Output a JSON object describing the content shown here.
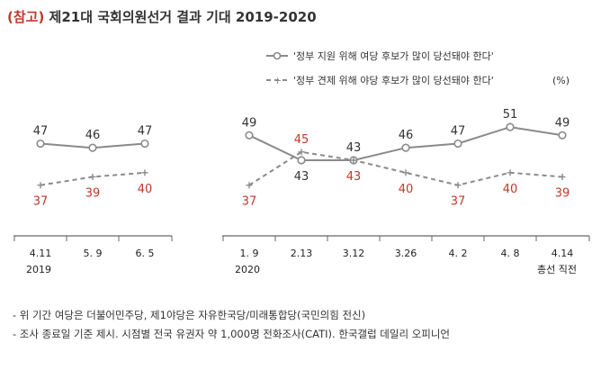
{
  "header": {
    "ref_label": "(참고)",
    "title": "제21대 국회의원선거 결과 기대 2019-2020"
  },
  "colors": {
    "support_line": "#8a8a8a",
    "check_line": "#8a8a8a",
    "support_label": "#333333",
    "check_label": "#c0392b",
    "axis": "#666666"
  },
  "chart_data": {
    "type": "line",
    "title": "제21대 국회의원선거 결과 기대 2019-2020",
    "unit": "(%)",
    "categories": [
      "4.11",
      "5. 9",
      "6. 5",
      "1. 9",
      "2.13",
      "3.12",
      "3.26",
      "4. 2",
      "4. 8",
      "4.14"
    ],
    "groups": [
      {
        "label": "2019",
        "category_indices": [
          0,
          1,
          2
        ]
      },
      {
        "label": "2020",
        "category_indices": [
          3,
          4,
          5,
          6,
          7,
          8,
          9
        ]
      }
    ],
    "extra_tick_note": {
      "category_index": 9,
      "text": "총선 직전"
    },
    "series": [
      {
        "name": "'정부 지원 위해 여당 후보가 많이 당선돼야 한다'",
        "style": "solid",
        "marker": "circle",
        "values": [
          47,
          46,
          47,
          49,
          43,
          43,
          46,
          47,
          51,
          49
        ]
      },
      {
        "name": "'정부 견제 위해 야당 후보가 많이 당선돼야 한다'",
        "style": "dashed",
        "marker": "plus",
        "values": [
          37,
          39,
          40,
          37,
          45,
          43,
          40,
          37,
          40,
          39
        ]
      }
    ],
    "legend_unit": "(%)",
    "legend_position": "top-right",
    "ylim": [
      30,
      56
    ]
  },
  "notes": [
    "- 위 기간 여당은 더불어민주당, 제1야당은 자유한국당/미래통합당(국민의힘 전신)",
    "- 조사 종료일 기준 제시. 시점별 전국 유권자 약 1,000명 전화조사(CATI). 한국갤럽 데일리 오피니언"
  ]
}
